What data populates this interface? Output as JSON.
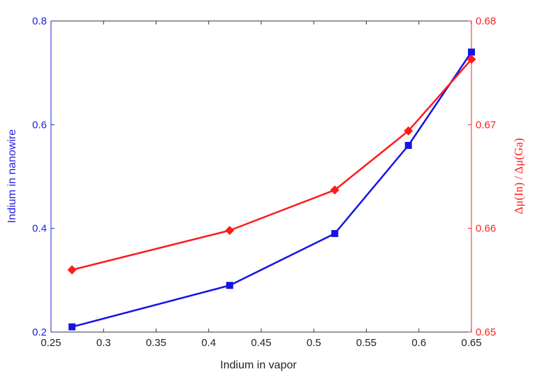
{
  "chart_data": {
    "type": "line",
    "xlabel": "Indium in vapor",
    "xlim": [
      0.25,
      0.65
    ],
    "xticks": [
      0.25,
      0.3,
      0.35,
      0.4,
      0.45,
      0.5,
      0.55,
      0.6,
      0.65
    ],
    "xtick_labels": [
      "0.25",
      "0.3",
      "0.35",
      "0.4",
      "0.45",
      "0.5",
      "0.55",
      "0.6",
      "0.65"
    ],
    "left_axis": {
      "label": "Indium in nanowire",
      "ylim": [
        0.2,
        0.8
      ],
      "ticks": [
        0.2,
        0.4,
        0.6,
        0.8
      ],
      "tick_labels": [
        "0.2",
        "0.4",
        "0.6",
        "0.8"
      ],
      "color": "#1f1fe0"
    },
    "right_axis": {
      "label": "Δμ(In) / Δμ(Ga)",
      "ylim": [
        0.65,
        0.68
      ],
      "ticks": [
        0.65,
        0.66,
        0.67,
        0.68
      ],
      "tick_labels": [
        "0.65",
        "0.66",
        "0.67",
        "0.68"
      ],
      "color": "#ff2020"
    },
    "grid": false,
    "series": [
      {
        "axis": "left",
        "color": "#1414e6",
        "marker": "square",
        "x": [
          0.27,
          0.42,
          0.52,
          0.59,
          0.65
        ],
        "y": [
          0.21,
          0.29,
          0.39,
          0.56,
          0.74
        ]
      },
      {
        "axis": "right",
        "color": "#ff1a1a",
        "marker": "diamond",
        "x": [
          0.27,
          0.42,
          0.52,
          0.59,
          0.65
        ],
        "y": [
          0.656,
          0.6598,
          0.6637,
          0.6694,
          0.6763
        ]
      }
    ]
  }
}
